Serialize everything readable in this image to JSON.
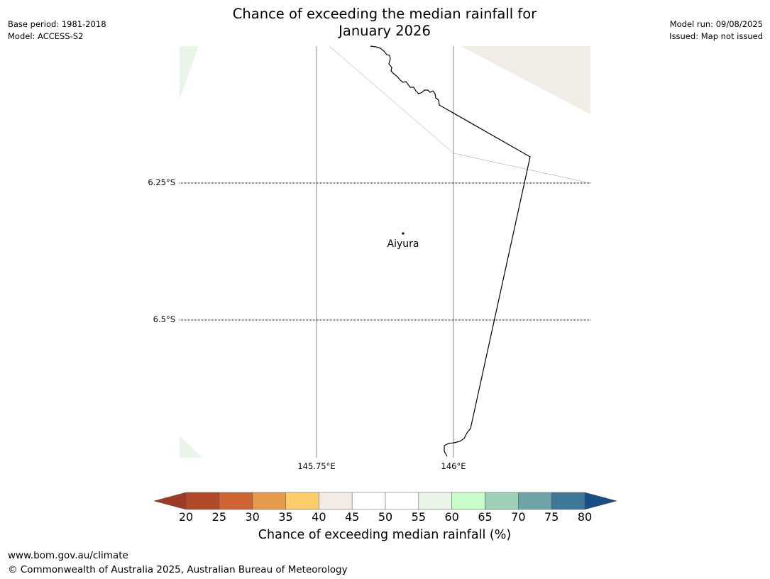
{
  "title": {
    "line1": "Chance of exceeding the median rainfall for",
    "line2": "January 2026"
  },
  "meta_left": {
    "base_period": "Base period: 1981-2018",
    "model": "Model: ACCESS-S2"
  },
  "meta_right": {
    "model_run": "Model run: 09/08/2025",
    "issued": "Issued: Map not issued"
  },
  "map": {
    "lat_labels": [
      "6.25°S",
      "6.5°S"
    ],
    "lon_labels": [
      "145.75°E",
      "146°E"
    ],
    "town": {
      "name": "Aiyura",
      "lat": -6.35,
      "lon": 145.9
    },
    "colors": {
      "tan": "#f1ece5",
      "light_green": "#e9f5e8",
      "coast": "#000000",
      "gridline": "#888888"
    }
  },
  "colorbar": {
    "title": "Chance of exceeding median rainfall (%)",
    "ticks": [
      "20",
      "25",
      "30",
      "35",
      "40",
      "45",
      "50",
      "55",
      "60",
      "65",
      "70",
      "75",
      "80"
    ],
    "under_color": "#9c3a24",
    "over_color": "#154f88",
    "colors": [
      "#b04a28",
      "#cd6632",
      "#e49a4a",
      "#fdcd6a",
      "#f2ece5",
      "#ffffff",
      "#ffffff",
      "#e9f5e8",
      "#c8fcc8",
      "#9ed0b8",
      "#6da4a8",
      "#3e7798"
    ]
  },
  "footer": {
    "url": "www.bom.gov.au/climate",
    "copyright": "© Commonwealth of Australia 2025, Australian Bureau of Meteorology"
  }
}
